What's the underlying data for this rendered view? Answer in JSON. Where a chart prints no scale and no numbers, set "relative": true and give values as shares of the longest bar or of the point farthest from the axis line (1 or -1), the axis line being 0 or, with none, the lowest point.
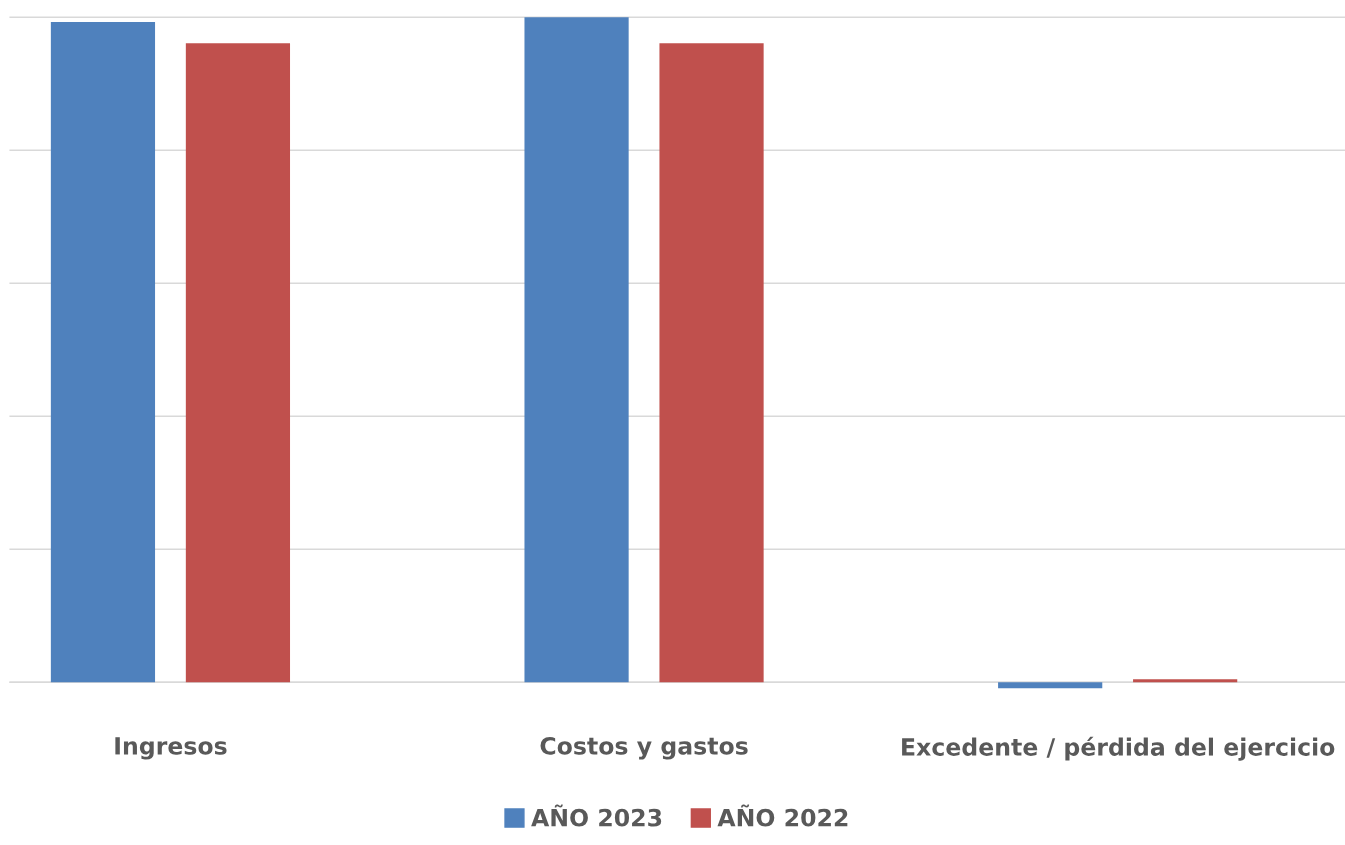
{
  "chart_data": {
    "type": "bar",
    "relative": true,
    "categories": [
      "Ingresos",
      "Costos y gastos",
      "Excedente / pérdida del ejercicio"
    ],
    "series": [
      {
        "name": "AÑO 2023",
        "color": "#4f81bd",
        "values": [
          0.993,
          1,
          -0.009
        ]
      },
      {
        "name": "AÑO 2022",
        "color": "#c0504d",
        "values": [
          0.961,
          0.961,
          0.0045
        ]
      }
    ],
    "grid": "y",
    "legend": "bottom"
  }
}
